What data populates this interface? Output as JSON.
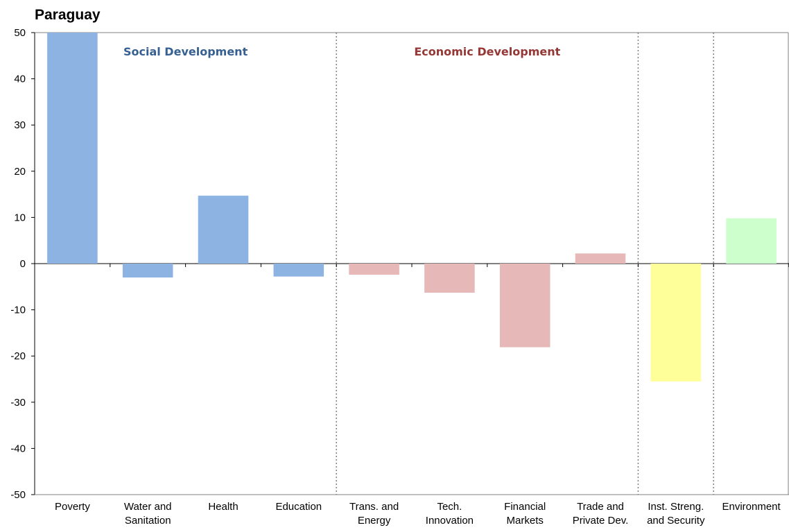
{
  "chart_data": {
    "type": "bar",
    "title": "Paraguay",
    "xlabel": "",
    "ylabel": "",
    "ylim": [
      -50,
      50
    ],
    "yticks": [
      50,
      40,
      30,
      20,
      10,
      0,
      -10,
      -20,
      -30,
      -40,
      -50
    ],
    "grid": false,
    "categories": [
      [
        "Poverty"
      ],
      [
        "Water and",
        "Sanitation"
      ],
      [
        "Health"
      ],
      [
        "Education"
      ],
      [
        "Trans. and",
        "Energy"
      ],
      [
        "Tech.",
        "Innovation"
      ],
      [
        "Financial",
        "Markets"
      ],
      [
        "Trade and",
        "Private Dev."
      ],
      [
        "Inst. Streng.",
        "and Security"
      ],
      [
        "Environment"
      ]
    ],
    "values": [
      50,
      -3,
      14.7,
      -2.8,
      -2.4,
      -6.3,
      -18.1,
      2.2,
      -25.5,
      9.8
    ],
    "groups": [
      {
        "label": "Social Development",
        "start": 0,
        "end": 3,
        "color": "#8DB3E2",
        "label_color": "#376092"
      },
      {
        "label": "Economic Development",
        "start": 4,
        "end": 7,
        "color": "#E6B9B8",
        "label_color": "#953735"
      },
      {
        "label": "",
        "start": 8,
        "end": 8,
        "color": "#FFFF99",
        "label_color": ""
      },
      {
        "label": "",
        "start": 9,
        "end": 9,
        "color": "#CCFFCC",
        "label_color": ""
      }
    ]
  }
}
